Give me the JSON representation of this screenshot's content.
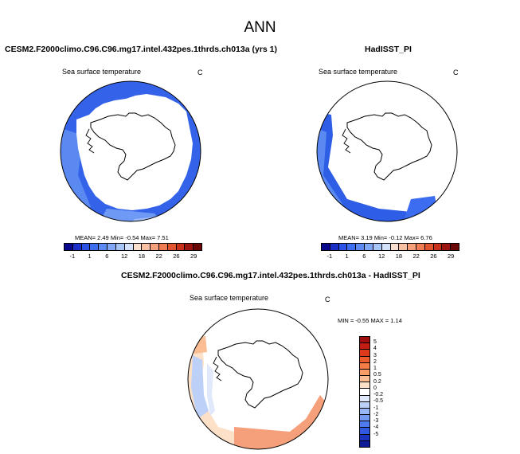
{
  "figure": {
    "title": "ANN"
  },
  "panels": [
    {
      "title": "CESM2.F2000climo.C96.C96.mg17.intel.432pes.1thrds.ch013a (yrs 1)",
      "variable": "Sea surface temperature",
      "units": "C",
      "stats": "MEAN=  2.49  Min=  -0.54  Max=  7.51"
    },
    {
      "title": "HadISST_PI",
      "variable": "Sea surface temperature",
      "units": "C",
      "stats": "MEAN=  3.19  Min=  -0.12  Max=  6.76"
    },
    {
      "title": "CESM2.F2000climo.C96.C96.mg17.intel.432pes.1thrds.ch013a - HadISST_PI",
      "variable": "Sea surface temperature",
      "units": "C",
      "stats": "MIN =  -0.55 MAX =   1.14"
    }
  ],
  "colorbar_main": {
    "colors": [
      "#08088c",
      "#1a2fc8",
      "#2b52e6",
      "#3e6ef0",
      "#5a8af2",
      "#7fa7f5",
      "#a8c5f8",
      "#d3e2fa",
      "#fbe0d0",
      "#f9c1a3",
      "#f5a07a",
      "#ef7c52",
      "#e25430",
      "#c8301a",
      "#9c1410",
      "#6a0808"
    ],
    "ticks": [
      "-1",
      "1",
      "6",
      "12",
      "18",
      "22",
      "26",
      "29"
    ]
  },
  "colorbar_diff": {
    "colors": [
      "#a10e0e",
      "#c41e14",
      "#dd3a1c",
      "#ec5b2c",
      "#f47c46",
      "#f89c68",
      "#fbbd94",
      "#fde0c8",
      "#ffffff",
      "#dfe9fb",
      "#bcd0f8",
      "#98b6f5",
      "#7399f1",
      "#4f7aed",
      "#3158e0",
      "#1c33c0",
      "#0f1a96"
    ],
    "ticks": [
      "5",
      "4",
      "3",
      "2",
      "1",
      "0.5",
      "0.2",
      "0",
      "-0.2",
      "-0.5",
      "-1",
      "-2",
      "-3",
      "-4",
      "-5"
    ]
  }
}
